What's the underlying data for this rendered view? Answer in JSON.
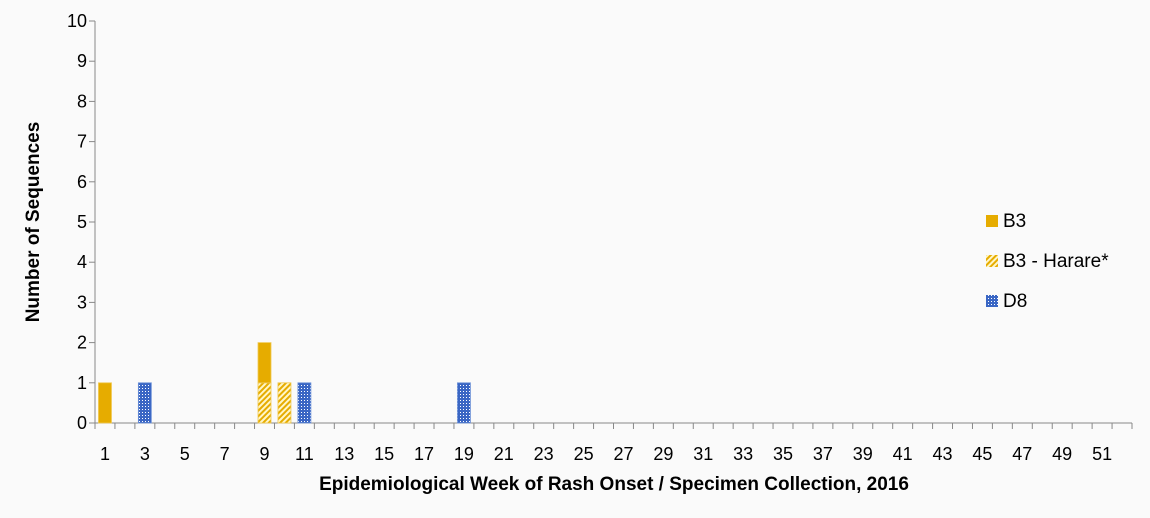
{
  "chart_data": {
    "type": "bar",
    "stacked": true,
    "xlabel": "Epidemiological Week of Rash Onset / Specimen Collection, 2016",
    "ylabel": "Number of Sequences",
    "ylim": [
      0,
      10
    ],
    "yticks": [
      0,
      1,
      2,
      3,
      4,
      5,
      6,
      7,
      8,
      9,
      10
    ],
    "x": [
      1,
      2,
      3,
      4,
      5,
      6,
      7,
      8,
      9,
      10,
      11,
      12,
      13,
      14,
      15,
      16,
      17,
      18,
      19,
      20,
      21,
      22,
      23,
      24,
      25,
      26,
      27,
      28,
      29,
      30,
      31,
      32,
      33,
      34,
      35,
      36,
      37,
      38,
      39,
      40,
      41,
      42,
      43,
      44,
      45,
      46,
      47,
      48,
      49,
      50,
      51,
      52
    ],
    "xtick_labels": [
      "1",
      "3",
      "5",
      "7",
      "9",
      "11",
      "13",
      "15",
      "17",
      "19",
      "21",
      "23",
      "25",
      "27",
      "29",
      "31",
      "33",
      "35",
      "37",
      "39",
      "41",
      "43",
      "45",
      "47",
      "49",
      "51"
    ],
    "grid": false,
    "legend_position": "right",
    "series": [
      {
        "name": "B3",
        "color": "#e6ac00",
        "pattern": "solid",
        "points": {
          "1": 1,
          "9": 1
        }
      },
      {
        "name": "B3 - Harare*",
        "color": "#e6ac00",
        "pattern": "diagonal-hatch",
        "points": {
          "9": 1,
          "10": 1
        }
      },
      {
        "name": "D8",
        "color": "#3a66c4",
        "pattern": "dots",
        "points": {
          "3": 1,
          "11": 1,
          "19": 1
        }
      }
    ]
  }
}
